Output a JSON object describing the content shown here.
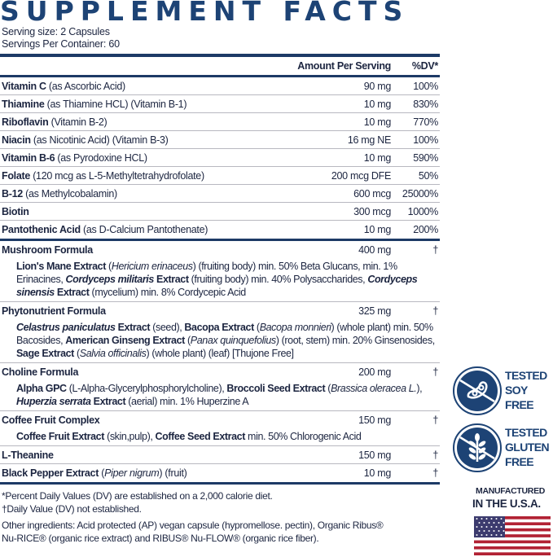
{
  "title": "SUPPLEMENT FACTS",
  "serving_size": "Serving size: 2 Capsules",
  "servings_per_container": "Servings Per Container: 60",
  "header": {
    "amount": "Amount Per Serving",
    "dv": "%DV*"
  },
  "vitamins": [
    {
      "name": "Vitamin C",
      "desc": " (as Ascorbic Acid)",
      "amount": "90 mg",
      "dv": "100%"
    },
    {
      "name": "Thiamine",
      "desc": " (as Thiamine HCL) (Vitamin B-1)",
      "amount": "10 mg",
      "dv": "830%"
    },
    {
      "name": "Riboflavin",
      "desc": " (Vitamin B-2)",
      "amount": "10 mg",
      "dv": "770%"
    },
    {
      "name": "Niacin",
      "desc": " (as Nicotinic Acid) (Vitamin B-3)",
      "amount": "16 mg NE",
      "dv": "100%"
    },
    {
      "name": "Vitamin B-6",
      "desc": " (as Pyrodoxine HCL)",
      "amount": "10 mg",
      "dv": "590%"
    },
    {
      "name": "Folate",
      "desc": " (120 mcg as L-5-Methyltetrahydrofolate)",
      "amount": "200 mcg DFE",
      "dv": "50%"
    },
    {
      "name": "B-12",
      "desc": " (as Methylcobalamin)",
      "amount": "600 mcg",
      "dv": "25000%"
    },
    {
      "name": "Biotin",
      "desc": "",
      "amount": "300 mcg",
      "dv": "1000%"
    },
    {
      "name": "Pantothenic Acid",
      "desc": " (as D-Calcium Pantothenate)",
      "amount": "10 mg",
      "dv": "200%"
    }
  ],
  "blends": [
    {
      "name": "Mushroom Formula",
      "amount": "400 mg",
      "dv": "†",
      "sub": [
        [
          "b",
          "Lion's Mane Extract"
        ],
        [
          "n",
          " ("
        ],
        [
          "i",
          "Hericium erinaceus"
        ],
        [
          "n",
          ") (fruiting body) min. 50% Beta Glucans, min. 1% Erinacines, "
        ],
        [
          "bi",
          "Cordyceps militaris"
        ],
        [
          "b",
          " Extract"
        ],
        [
          "n",
          " (fruiting body) min. 40% Polysaccharides, "
        ],
        [
          "bi",
          "Cordyceps sinensis"
        ],
        [
          "b",
          " Extract"
        ],
        [
          "n",
          " (mycelium) min. 8% Cordycepic Acid"
        ]
      ]
    },
    {
      "name": "Phytonutrient Formula",
      "amount": "325 mg",
      "dv": "†",
      "sub": [
        [
          "bi",
          "Celastrus paniculatus"
        ],
        [
          "b",
          " Extract"
        ],
        [
          "n",
          " (seed), "
        ],
        [
          "b",
          "Bacopa Extract"
        ],
        [
          "n",
          " ("
        ],
        [
          "i",
          "Bacopa monnieri"
        ],
        [
          "n",
          ") (whole plant) min. 50% Bacosides, "
        ],
        [
          "b",
          "American Ginseng Extract"
        ],
        [
          "n",
          " ("
        ],
        [
          "i",
          "Panax quinquefolius"
        ],
        [
          "n",
          ") (root, stem) min. 20% Ginsenosides, "
        ],
        [
          "b",
          "Sage Extract"
        ],
        [
          "n",
          " ("
        ],
        [
          "i",
          "Salvia officinalis"
        ],
        [
          "n",
          ") (whole plant) (leaf) [Thujone Free]"
        ]
      ]
    },
    {
      "name": "Choline Formula",
      "amount": "200 mg",
      "dv": "†",
      "sub": [
        [
          "b",
          "Alpha GPC"
        ],
        [
          "n",
          " (L-Alpha-Glycerylphosphorylcholine), "
        ],
        [
          "b",
          "Broccoli Seed Extract"
        ],
        [
          "n",
          " ("
        ],
        [
          "i",
          "Brassica oleracea L."
        ],
        [
          "n",
          "), "
        ],
        [
          "bi",
          "Huperzia serrata"
        ],
        [
          "b",
          " Extract"
        ],
        [
          "n",
          " (aerial) min. 1% Huperzine A"
        ]
      ]
    },
    {
      "name": "Coffee Fruit Complex",
      "amount": "150 mg",
      "dv": "†",
      "sub": [
        [
          "b",
          "Coffee Fruit Extract"
        ],
        [
          "n",
          " (skin,pulp), "
        ],
        [
          "b",
          "Coffee Seed Extract"
        ],
        [
          "n",
          " min. 50% Chlorogenic Acid"
        ]
      ]
    },
    {
      "name": "L-Theanine",
      "amount": "150 mg",
      "dv": "†"
    },
    {
      "name": "Black Pepper Extract",
      "desc_italic": "Piper nigrum",
      "desc_after": " (fruit)",
      "amount": "10 mg",
      "dv": "†"
    }
  ],
  "footnotes": {
    "dv_note": "*Percent Daily Values (DV) are established on a 2,000 calorie diet.",
    "dagger_note": "†Daily Value (DV) not established.",
    "other_1": "Other ingredients: Acid protected (AP) vegan capsule (hypromellose. pectin), Organic Ribus® ",
    "other_2": "Nu-RICE® (organic rice extract) and RIBUS® Nu-FLOW® (organic rice fiber)."
  },
  "badges": {
    "soy": [
      "TESTED",
      "SOY",
      "FREE"
    ],
    "gluten": [
      "TESTED",
      "GLUTEN",
      "FREE"
    ],
    "mfg_1": "MANUFACTURED",
    "mfg_2": "IN THE U.S.A."
  },
  "colors": {
    "navy": "#1d4375",
    "flag_red": "#b22234",
    "flag_blue": "#3c3b6e"
  }
}
